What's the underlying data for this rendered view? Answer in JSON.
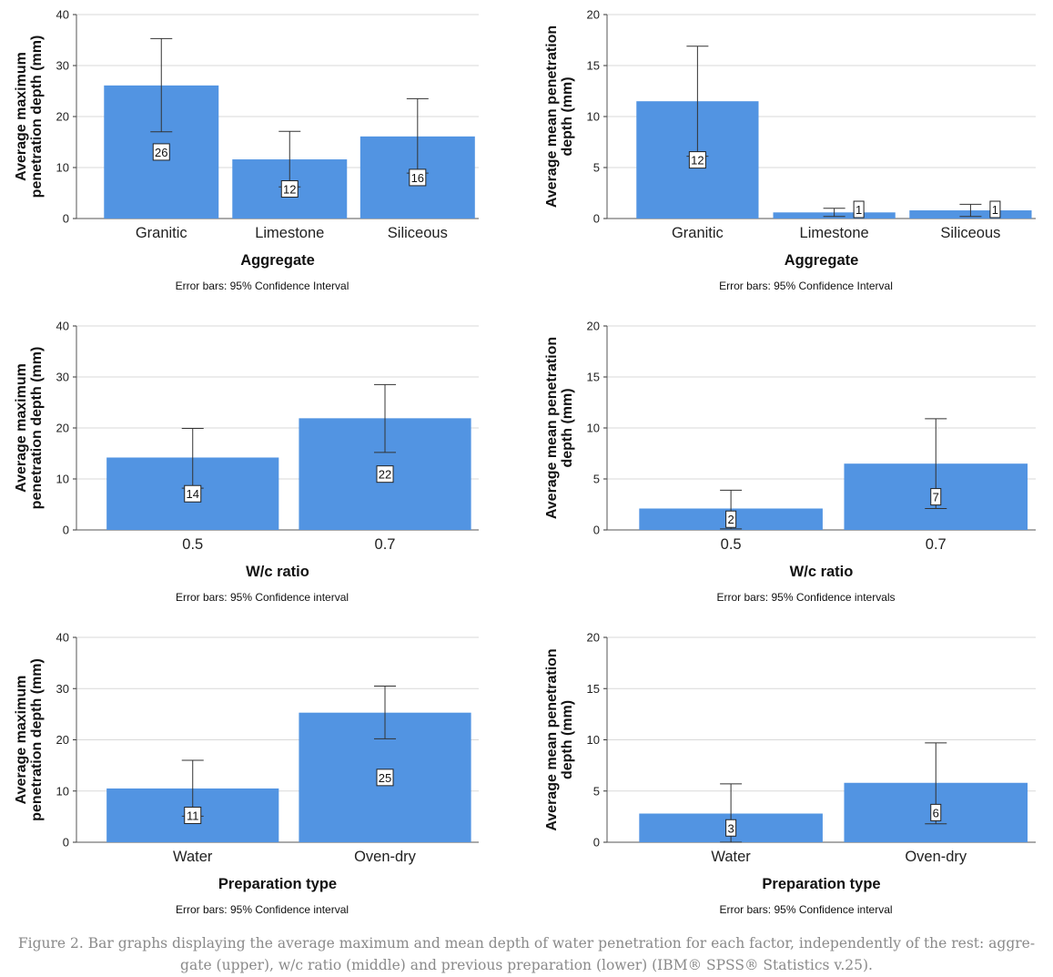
{
  "chart_data": [
    {
      "type": "bar",
      "title": "",
      "categories": [
        "Granitic",
        "Limestone",
        "Siliceous"
      ],
      "values": [
        26.1,
        11.6,
        16.1
      ],
      "data_labels": [
        "26",
        "12",
        "16"
      ],
      "error_bars": [
        [
          17.0,
          35.3
        ],
        [
          6.2,
          17.1
        ],
        [
          8.9,
          23.5
        ]
      ],
      "xlabel": "Aggregate",
      "ylabel_lines": [
        "Average maximum",
        "penetration depth (mm)"
      ],
      "ylim": [
        0,
        40
      ],
      "yticks": [
        0,
        10,
        20,
        30,
        40
      ],
      "note": "Error bars: 95% Confidence Interval",
      "grid": true,
      "bar_color": "#5294e2"
    },
    {
      "type": "bar",
      "title": "",
      "categories": [
        "Granitic",
        "Limestone",
        "Siliceous"
      ],
      "values": [
        11.5,
        0.6,
        0.8
      ],
      "data_labels": [
        "12",
        "1",
        "1"
      ],
      "error_bars": [
        [
          6.1,
          16.9
        ],
        [
          0.2,
          1.0
        ],
        [
          0.2,
          1.4
        ]
      ],
      "xlabel": "Aggregate",
      "ylabel_lines": [
        "Average mean penetration",
        "depth (mm)"
      ],
      "ylim": [
        0,
        20
      ],
      "yticks": [
        0,
        5,
        10,
        15,
        20
      ],
      "note": "Error bars: 95% Confidence Interval",
      "grid": true,
      "bar_color": "#5294e2"
    },
    {
      "type": "bar",
      "title": "",
      "categories": [
        "0.5",
        "0.7"
      ],
      "values": [
        14.2,
        21.9
      ],
      "data_labels": [
        "14",
        "22"
      ],
      "error_bars": [
        [
          8.2,
          19.9
        ],
        [
          15.2,
          28.5
        ]
      ],
      "xlabel": "W/c ratio",
      "ylabel_lines": [
        "Average maximum",
        "penetration depth (mm)"
      ],
      "ylim": [
        0,
        40
      ],
      "yticks": [
        0,
        10,
        20,
        30,
        40
      ],
      "note": "Error bars: 95% Confidence interval",
      "grid": true,
      "bar_color": "#5294e2"
    },
    {
      "type": "bar",
      "title": "",
      "categories": [
        "0.5",
        "0.7"
      ],
      "values": [
        2.1,
        6.5
      ],
      "data_labels": [
        "2",
        "7"
      ],
      "error_bars": [
        [
          0.1,
          3.9
        ],
        [
          2.1,
          10.9
        ]
      ],
      "xlabel": "W/c ratio",
      "ylabel_lines": [
        "Average mean penetration",
        "depth (mm)"
      ],
      "ylim": [
        0,
        20
      ],
      "yticks": [
        0,
        5,
        10,
        15,
        20
      ],
      "note": "Error bars: 95% Confidence intervals",
      "grid": true,
      "bar_color": "#5294e2"
    },
    {
      "type": "bar",
      "title": "",
      "categories": [
        "Water",
        "Oven-dry"
      ],
      "values": [
        10.5,
        25.3
      ],
      "data_labels": [
        "11",
        "25"
      ],
      "error_bars": [
        [
          5.1,
          16.0
        ],
        [
          20.2,
          30.5
        ]
      ],
      "xlabel": "Preparation type",
      "ylabel_lines": [
        "Average maximum",
        "penetration depth (mm)"
      ],
      "ylim": [
        0,
        40
      ],
      "yticks": [
        0,
        10,
        20,
        30,
        40
      ],
      "note": "Error bars: 95% Confidence interval",
      "grid": true,
      "bar_color": "#5294e2"
    },
    {
      "type": "bar",
      "title": "",
      "categories": [
        "Water",
        "Oven-dry"
      ],
      "values": [
        2.8,
        5.8
      ],
      "data_labels": [
        "3",
        "6"
      ],
      "error_bars": [
        [
          0.0,
          5.7
        ],
        [
          1.8,
          9.7
        ]
      ],
      "xlabel": "Preparation type",
      "ylabel_lines": [
        "Average mean penetration",
        "depth (mm)"
      ],
      "ylim": [
        0,
        20
      ],
      "yticks": [
        0,
        5,
        10,
        15,
        20
      ],
      "note": "Error bars: 95% Confidence interval",
      "grid": true,
      "bar_color": "#5294e2"
    }
  ],
  "caption": {
    "line1": "Figure 2. Bar graphs displaying the average maximum and mean depth of water penetration for each factor, independently of the rest: aggre-",
    "line2": "gate (upper), w/c ratio (middle) and previous preparation (lower) (IBM® SPSS® Statistics v.25)."
  }
}
